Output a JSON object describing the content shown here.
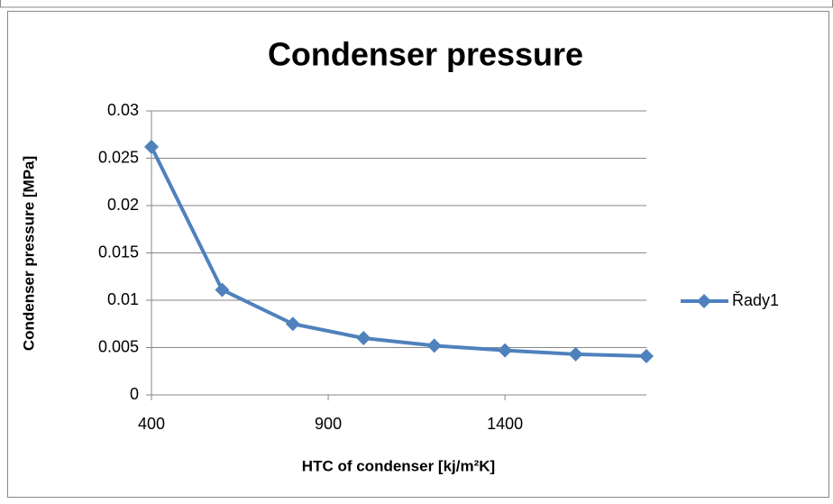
{
  "chart_data": {
    "type": "line",
    "title": "Condenser pressure",
    "x_label": "HTC of condenser [kj/m²K]",
    "y_label": "Condenser pressure [MPa]",
    "x": [
      400,
      600,
      800,
      1000,
      1200,
      1400,
      1600,
      1800
    ],
    "series": [
      {
        "name": "Řady1",
        "color": "#4f81bd",
        "values": [
          0.0262,
          0.0111,
          0.0075,
          0.006,
          0.0052,
          0.0047,
          0.0043,
          0.0041
        ]
      }
    ],
    "xlim": [
      400,
      1800
    ],
    "xticks": [
      400,
      900,
      1400
    ],
    "ylim": [
      0,
      0.03
    ],
    "yticks": [
      0,
      0.005,
      0.01,
      0.015,
      0.02,
      0.025,
      0.03
    ],
    "grid": true,
    "legend": "right"
  }
}
